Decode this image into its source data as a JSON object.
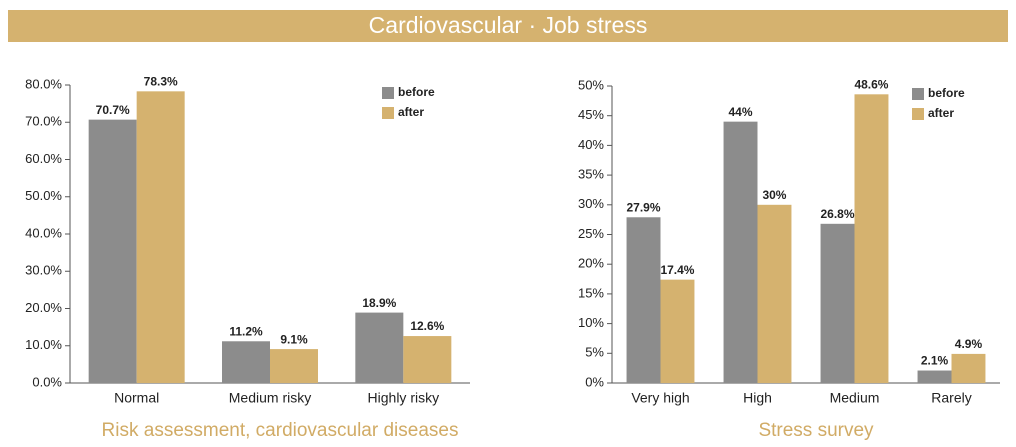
{
  "header": {
    "title": "Cardiovascular · Job stress"
  },
  "chart_data": [
    {
      "type": "bar",
      "xlabel": "Risk assessment, cardiovascular diseases",
      "categories": [
        "Normal",
        "Medium risky",
        "Highly risky"
      ],
      "series": [
        {
          "name": "before",
          "color": "#8c8c8c",
          "values": [
            70.7,
            11.2,
            18.9
          ],
          "value_labels": [
            "70.7%",
            "11.2%",
            "18.9%"
          ]
        },
        {
          "name": "after",
          "color": "#d5b26f",
          "values": [
            78.3,
            9.1,
            12.6
          ],
          "value_labels": [
            "78.3%",
            "9.1%",
            "12.6%"
          ]
        }
      ],
      "ylim": [
        0,
        80
      ],
      "yticks": [
        {
          "value": 0,
          "label": "0.0%"
        },
        {
          "value": 10,
          "label": "10.0%"
        },
        {
          "value": 20,
          "label": "20.0%"
        },
        {
          "value": 30,
          "label": "30.0%"
        },
        {
          "value": 40,
          "label": "40.0%"
        },
        {
          "value": 50,
          "label": "50.0%"
        },
        {
          "value": 60,
          "label": "60.0%"
        },
        {
          "value": 70,
          "label": "70.0%"
        },
        {
          "value": 80,
          "label": "80.0%"
        }
      ],
      "legend": "top-right"
    },
    {
      "type": "bar",
      "xlabel": "Stress survey",
      "categories": [
        "Very high",
        "High",
        "Medium",
        "Rarely"
      ],
      "series": [
        {
          "name": "before",
          "color": "#8c8c8c",
          "values": [
            27.9,
            44,
            26.8,
            2.1
          ],
          "value_labels": [
            "27.9%",
            "44%",
            "26.8%",
            "2.1%"
          ]
        },
        {
          "name": "after",
          "color": "#d5b26f",
          "values": [
            17.4,
            30,
            48.6,
            4.9
          ],
          "value_labels": [
            "17.4%",
            "30%",
            "48.6%",
            "4.9%"
          ]
        }
      ],
      "ylim": [
        0,
        50
      ],
      "yticks": [
        {
          "value": 0,
          "label": "0%"
        },
        {
          "value": 5,
          "label": "5%"
        },
        {
          "value": 10,
          "label": "10%"
        },
        {
          "value": 15,
          "label": "15%"
        },
        {
          "value": 20,
          "label": "20%"
        },
        {
          "value": 25,
          "label": "25%"
        },
        {
          "value": 30,
          "label": "30%"
        },
        {
          "value": 35,
          "label": "35%"
        },
        {
          "value": 40,
          "label": "40%"
        },
        {
          "value": 45,
          "label": "45%"
        },
        {
          "value": 50,
          "label": "50%"
        }
      ],
      "legend": "top-right"
    }
  ]
}
